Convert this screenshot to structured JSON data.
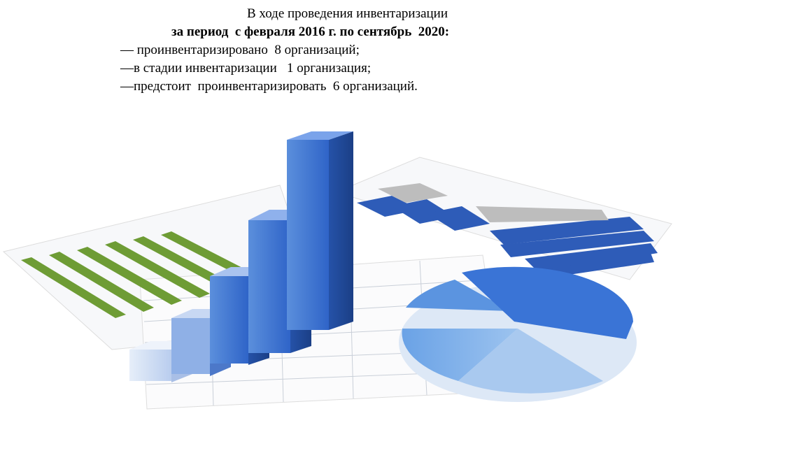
{
  "slide": {
    "title": "В ходе проведения инвентаризации",
    "period": "за период  с февраля 2016 г. по сентябрь  2020:",
    "items": [
      "— проинвентаризировано  8 организаций;",
      "—в стадии инвентаризации   1 организация;",
      "—предстоит  проинвентаризировать  6 организаций."
    ]
  }
}
